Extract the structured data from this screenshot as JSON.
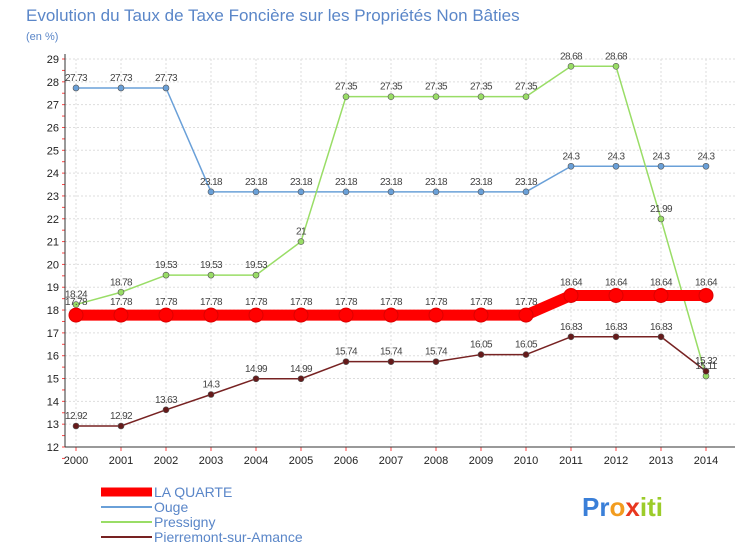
{
  "chart_data": {
    "type": "line",
    "title": "Evolution du Taux de Taxe Foncière sur les Propriétés Non Bâties",
    "subtitle": "(en %)",
    "xlabel": "",
    "ylabel": "",
    "x": [
      "2000",
      "2001",
      "2002",
      "2003",
      "2004",
      "2005",
      "2006",
      "2007",
      "2008",
      "2009",
      "2010",
      "2011",
      "2012",
      "2013",
      "2014"
    ],
    "ylim": [
      12,
      29
    ],
    "yticks": [
      12,
      13,
      14,
      15,
      16,
      17,
      18,
      19,
      20,
      21,
      22,
      23,
      24,
      25,
      26,
      27,
      28,
      29
    ],
    "grid": true,
    "series": [
      {
        "name": "LA QUARTE",
        "color": "#ff0000",
        "values": [
          17.78,
          17.78,
          17.78,
          17.78,
          17.78,
          17.78,
          17.78,
          17.78,
          17.78,
          17.78,
          17.78,
          18.64,
          18.64,
          18.64,
          18.64
        ],
        "labels": [
          "17.78",
          "17.78",
          "17.78",
          "17.78",
          "17.78",
          "17.78",
          "17.78",
          "17.78",
          "17.78",
          "17.78",
          "17.78",
          "18.64",
          "18.64",
          "18.64",
          "18.64"
        ]
      },
      {
        "name": "Ouge",
        "color": "#6aa0d8",
        "values": [
          27.73,
          27.73,
          27.73,
          23.18,
          23.18,
          23.18,
          23.18,
          23.18,
          23.18,
          23.18,
          23.18,
          24.3,
          24.3,
          24.3,
          24.3
        ],
        "labels": [
          "27.73",
          "27.73",
          "27.73",
          "23.18",
          "23.18",
          "23.18",
          "23.18",
          "23.18",
          "23.18",
          "23.18",
          "23.18",
          "24.3",
          "24.3",
          "24.3",
          "24.3"
        ]
      },
      {
        "name": "Pressigny",
        "color": "#99dd66",
        "values": [
          18.24,
          18.78,
          19.53,
          19.53,
          19.53,
          21,
          27.35,
          27.35,
          27.35,
          27.35,
          27.35,
          28.68,
          28.68,
          21.99,
          15.11
        ],
        "labels": [
          "18.24",
          "18.78",
          "19.53",
          "19.53",
          "19.53",
          "21",
          "27.35",
          "27.35",
          "27.35",
          "27.35",
          "27.35",
          "28.68",
          "28.68",
          "21.99",
          "15.11"
        ]
      },
      {
        "name": "Pierremont-sur-Amance",
        "color": "#772222",
        "values": [
          12.92,
          12.92,
          13.63,
          14.3,
          14.99,
          14.99,
          15.74,
          15.74,
          15.74,
          16.05,
          16.05,
          16.83,
          16.83,
          16.83,
          15.32
        ],
        "labels": [
          "12.92",
          "12.92",
          "13.63",
          "14.3",
          "14.99",
          "14.99",
          "15.74",
          "15.74",
          "15.74",
          "16.05",
          "16.05",
          "16.83",
          "16.83",
          "16.83",
          "15.32"
        ]
      }
    ],
    "legend_position": "bottom-left"
  },
  "brand": {
    "name": "Proxiti",
    "letters": [
      "P",
      "r",
      "o",
      "x",
      "i",
      "t",
      "i"
    ]
  }
}
